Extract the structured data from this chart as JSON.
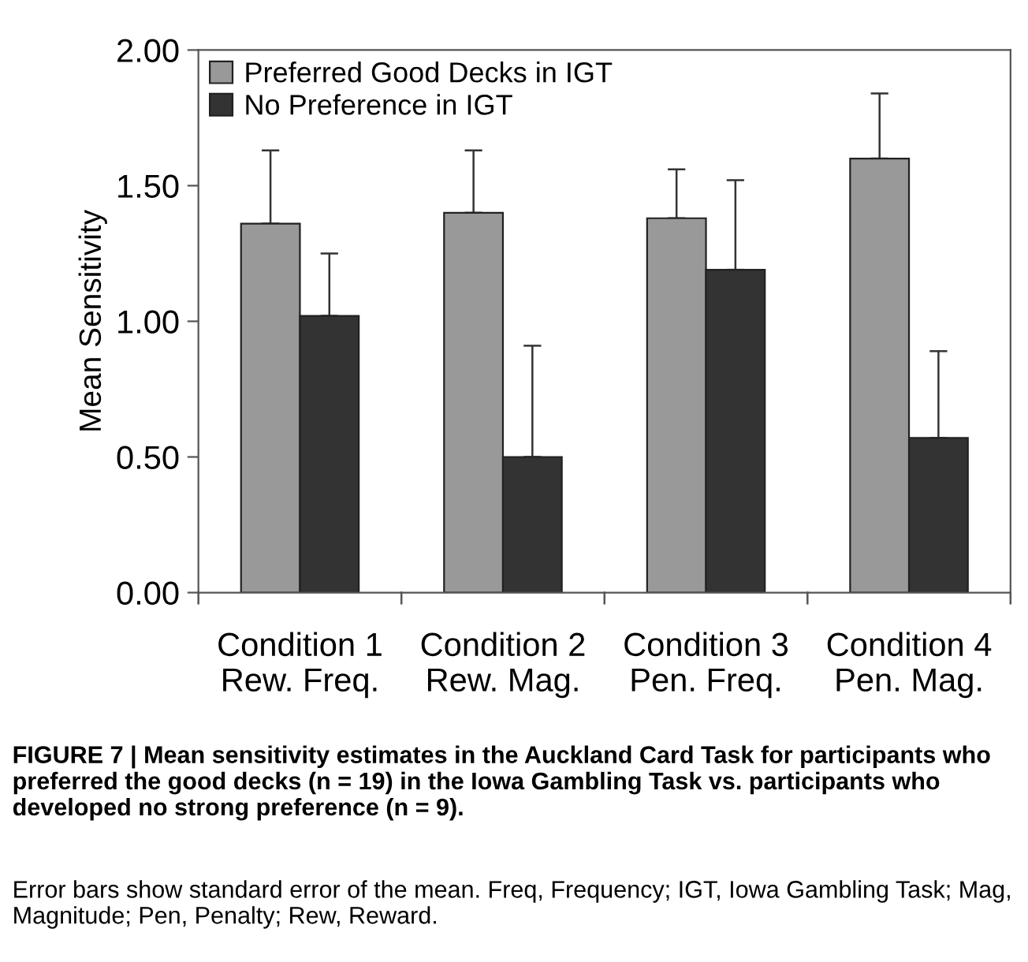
{
  "chart_data": {
    "type": "bar",
    "title": "FIGURE 7 | Mean sensitivity estimates in the Auckland Card Task for participants who preferred the good decks (n = 19) in the Iowa Gambling Task vs. participants who developed no strong preference (n = 9).",
    "annotations": [
      "Error bars show standard error of the mean. Freq, Frequency; IGT, Iowa Gambling Task; Mag, Magnitude; Pen, Penalty; Rew, Reward."
    ],
    "ylabel": "Mean Sensitivity",
    "categories": [
      "Condition 1\nRew. Freq.",
      "Condition 2\nRew. Mag.",
      "Condition 3\nPen. Freq.",
      "Condition 4\nPen. Mag."
    ],
    "series": [
      {
        "name": "Preferred Good Decks in IGT",
        "color": "#999999",
        "values": [
          1.36,
          1.4,
          1.38,
          1.6
        ],
        "errors": [
          [
            1.36,
            1.63
          ],
          [
            1.4,
            1.63
          ],
          [
            1.38,
            1.56
          ],
          [
            1.6,
            1.84
          ]
        ]
      },
      {
        "name": "No Preference in IGT",
        "color": "#333333",
        "values": [
          1.02,
          0.5,
          1.19,
          0.57
        ],
        "errors": [
          [
            1.02,
            1.25
          ],
          [
            0.5,
            0.91
          ],
          [
            1.19,
            1.52
          ],
          [
            0.57,
            0.89
          ]
        ]
      }
    ],
    "ylim": [
      0,
      2
    ],
    "yticks": [
      {
        "value": 0,
        "label": "0.00"
      },
      {
        "value": 0.5,
        "label": "0.50"
      },
      {
        "value": 1,
        "label": "1.00"
      },
      {
        "value": 1.5,
        "label": "1.50"
      },
      {
        "value": 2,
        "label": "2.00"
      }
    ],
    "grid": false,
    "legend": "top left"
  }
}
